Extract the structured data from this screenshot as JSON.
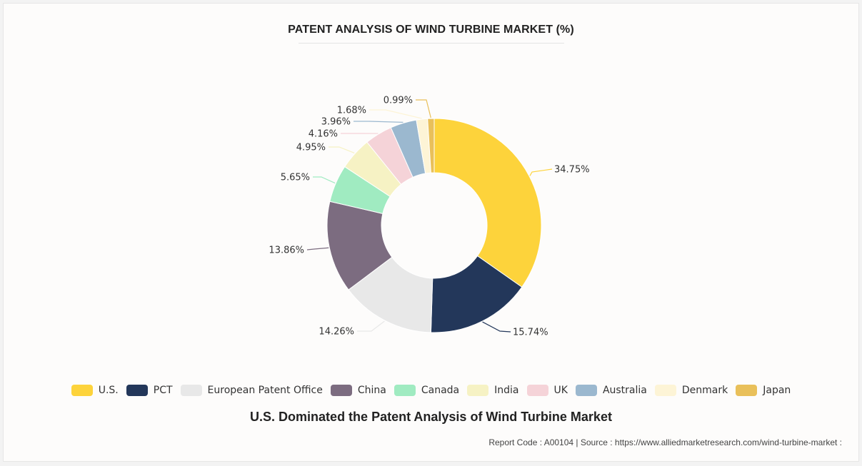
{
  "chart_data": {
    "type": "pie",
    "title": "PATENT ANALYSIS OF WIND TURBINE MARKET (%)",
    "categories": [
      "U.S.",
      "PCT",
      "European Patent Office",
      "China",
      "Canada",
      "India",
      "UK",
      "Australia",
      "Denmark",
      "Japan"
    ],
    "values": [
      34.75,
      15.74,
      14.26,
      13.86,
      5.65,
      4.95,
      4.16,
      3.96,
      1.68,
      0.99
    ],
    "labels": [
      "34.75%",
      "15.74%",
      "14.26%",
      "13.86%",
      "5.65%",
      "4.95%",
      "4.16%",
      "3.96%",
      "1.68%",
      "0.99%"
    ],
    "colors": [
      "#fdd33b",
      "#23375a",
      "#e8e8e8",
      "#7c6c80",
      "#a0ebc1",
      "#f6f2c4",
      "#f5d3d8",
      "#9bb8cf",
      "#fdf4d6",
      "#e9c05a"
    ],
    "donut": true,
    "legend_position": "bottom"
  },
  "legend": {
    "items": [
      {
        "label": "U.S.",
        "color": "#fdd33b"
      },
      {
        "label": "PCT",
        "color": "#23375a"
      },
      {
        "label": "European Patent Office",
        "color": "#e8e8e8"
      },
      {
        "label": "China",
        "color": "#7c6c80"
      },
      {
        "label": "Canada",
        "color": "#a0ebc1"
      },
      {
        "label": "India",
        "color": "#f6f2c4"
      },
      {
        "label": "UK",
        "color": "#f5d3d8"
      },
      {
        "label": "Australia",
        "color": "#9bb8cf"
      },
      {
        "label": "Denmark",
        "color": "#fdf4d6"
      },
      {
        "label": "Japan",
        "color": "#e9c05a"
      }
    ]
  },
  "subtitle": "U.S. Dominated the Patent Analysis of Wind Turbine Market",
  "source": "Report Code : A00104  |  Source : https://www.alliedmarketresearch.com/wind-turbine-market :"
}
